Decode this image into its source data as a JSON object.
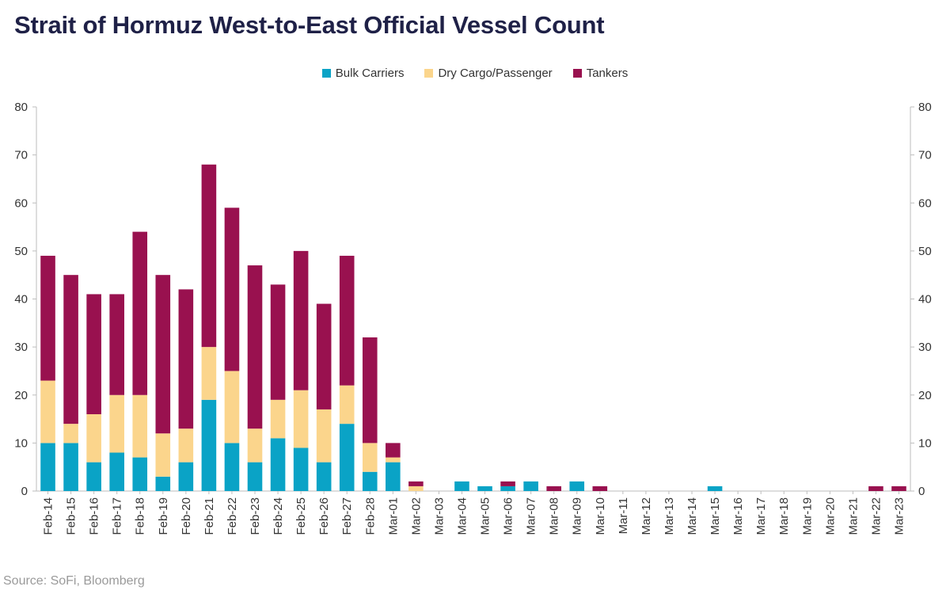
{
  "chart_data": {
    "type": "bar",
    "stacked": true,
    "title": "Strait of Hormuz West-to-East Official Vessel Count",
    "source": "Source: SoFi, Bloomberg",
    "ylim": [
      0,
      80
    ],
    "yticks": [
      0,
      10,
      20,
      30,
      40,
      50,
      60,
      70,
      80
    ],
    "legend_position": "top-center",
    "grid": false,
    "categories": [
      "Feb-14",
      "Feb-15",
      "Feb-16",
      "Feb-17",
      "Feb-18",
      "Feb-19",
      "Feb-20",
      "Feb-21",
      "Feb-22",
      "Feb-23",
      "Feb-24",
      "Feb-25",
      "Feb-26",
      "Feb-27",
      "Feb-28",
      "Mar-01",
      "Mar-02",
      "Mar-03",
      "Mar-04",
      "Mar-05",
      "Mar-06",
      "Mar-07",
      "Mar-08",
      "Mar-09",
      "Mar-10",
      "Mar-11",
      "Mar-12",
      "Mar-13",
      "Mar-14",
      "Mar-15",
      "Mar-16",
      "Mar-17",
      "Mar-18",
      "Mar-19",
      "Mar-20",
      "Mar-21",
      "Mar-22",
      "Mar-23"
    ],
    "series": [
      {
        "name": "Bulk Carriers",
        "color": "#0aa3c6",
        "values": [
          10,
          10,
          6,
          8,
          7,
          3,
          6,
          19,
          10,
          6,
          11,
          9,
          6,
          14,
          4,
          6,
          0,
          0,
          2,
          1,
          1,
          2,
          0,
          2,
          0,
          0,
          0,
          0,
          0,
          1,
          0,
          0,
          0,
          0,
          0,
          0,
          0,
          0
        ]
      },
      {
        "name": "Dry Cargo/Passenger",
        "color": "#fbd58c",
        "values": [
          13,
          4,
          10,
          12,
          13,
          9,
          7,
          11,
          15,
          7,
          8,
          12,
          11,
          8,
          6,
          1,
          1,
          0,
          0,
          0,
          0,
          0,
          0,
          0,
          0,
          0,
          0,
          0,
          0,
          0,
          0,
          0,
          0,
          0,
          0,
          0,
          0,
          0
        ]
      },
      {
        "name": "Tankers",
        "color": "#99114f",
        "values": [
          26,
          31,
          25,
          21,
          34,
          33,
          29,
          38,
          34,
          34,
          24,
          29,
          22,
          27,
          22,
          3,
          1,
          0,
          0,
          0,
          1,
          0,
          1,
          0,
          1,
          0,
          0,
          0,
          0,
          0,
          0,
          0,
          0,
          0,
          0,
          0,
          1,
          1
        ]
      }
    ]
  }
}
